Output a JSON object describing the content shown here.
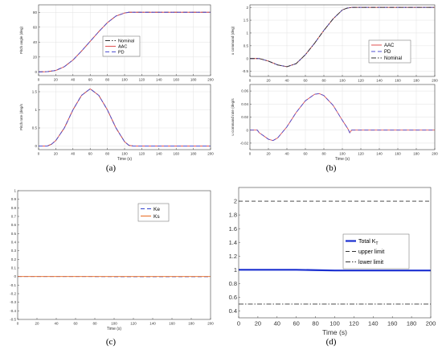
{
  "captions": {
    "a": "(a)",
    "b": "(b)",
    "c": "(c)",
    "d": "(d)"
  },
  "chart_data": [
    {
      "id": "a1",
      "type": "line",
      "xlabel": "",
      "ylabel": "Pitch angle (deg)",
      "xlim": [
        0,
        200
      ],
      "ylim": [
        -5,
        90
      ],
      "xticks": [
        0,
        20,
        40,
        60,
        80,
        100,
        120,
        140,
        160,
        180,
        200
      ],
      "yticks": [
        0,
        20,
        40,
        60,
        80
      ],
      "grid": true,
      "legend": "center-right",
      "series": [
        {
          "name": "Nominal",
          "color": "#333333",
          "dash": "dashdot",
          "x": [
            0,
            10,
            20,
            30,
            40,
            50,
            60,
            70,
            80,
            90,
            100,
            105,
            110,
            120,
            140,
            160,
            180,
            200
          ],
          "y": [
            0,
            0.3,
            2,
            7,
            16,
            28,
            41,
            54,
            66,
            75,
            79,
            80,
            80,
            80,
            80,
            80,
            80,
            80
          ]
        },
        {
          "name": "AAC",
          "color": "#e05050",
          "dash": "solid",
          "x": [
            0,
            10,
            20,
            30,
            40,
            50,
            60,
            70,
            80,
            90,
            100,
            105,
            110,
            120,
            140,
            160,
            180,
            200
          ],
          "y": [
            0,
            0.3,
            2,
            7,
            16,
            28,
            41,
            54,
            66,
            75,
            79,
            80,
            80,
            80,
            80,
            80,
            80,
            80
          ]
        },
        {
          "name": "PD",
          "color": "#5050d0",
          "dash": "dashed",
          "x": [
            0,
            10,
            20,
            30,
            40,
            50,
            60,
            70,
            80,
            90,
            100,
            105,
            110,
            120,
            140,
            160,
            180,
            200
          ],
          "y": [
            0,
            0.3,
            2,
            7,
            16,
            28,
            41,
            54,
            66,
            75,
            79,
            80,
            80,
            80,
            80,
            80,
            80,
            80
          ]
        }
      ]
    },
    {
      "id": "a2",
      "type": "line",
      "xlabel": "Time (s)",
      "ylabel": "Pitch rate (deg/s",
      "xlim": [
        0,
        200
      ],
      "ylim": [
        -0.1,
        1.7
      ],
      "xticks": [
        0,
        20,
        40,
        60,
        80,
        100,
        120,
        140,
        160,
        180,
        200
      ],
      "yticks": [
        0,
        0.5,
        1,
        1.5
      ],
      "grid": true,
      "legend": "none",
      "series": [
        {
          "name": "Nominal",
          "color": "#333333",
          "dash": "dashdot",
          "x": [
            0,
            10,
            15,
            20,
            30,
            40,
            50,
            60,
            70,
            80,
            90,
            100,
            105,
            110,
            120,
            140,
            160,
            180,
            200
          ],
          "y": [
            0,
            0,
            0.05,
            0.15,
            0.5,
            1.0,
            1.4,
            1.58,
            1.4,
            1.0,
            0.5,
            0.12,
            0.02,
            0,
            0,
            0,
            0,
            0,
            0
          ]
        },
        {
          "name": "AAC",
          "color": "#e05050",
          "dash": "solid",
          "x": [
            0,
            10,
            15,
            20,
            30,
            40,
            50,
            60,
            70,
            80,
            90,
            100,
            105,
            110,
            120,
            140,
            160,
            180,
            200
          ],
          "y": [
            0,
            0,
            0.05,
            0.15,
            0.5,
            1.0,
            1.4,
            1.58,
            1.4,
            1.0,
            0.5,
            0.12,
            0.02,
            0,
            0,
            0,
            0,
            0,
            0
          ]
        },
        {
          "name": "PD",
          "color": "#5050d0",
          "dash": "dashed",
          "x": [
            0,
            10,
            15,
            20,
            30,
            40,
            50,
            60,
            70,
            80,
            90,
            100,
            105,
            110,
            120,
            140,
            160,
            180,
            200
          ],
          "y": [
            0,
            0,
            0.05,
            0.15,
            0.5,
            1.0,
            1.4,
            1.58,
            1.4,
            1.0,
            0.5,
            0.12,
            0.02,
            0,
            0,
            0,
            0,
            0,
            0
          ]
        }
      ]
    },
    {
      "id": "b1",
      "type": "line",
      "xlabel": "",
      "ylabel": "u command (deg)",
      "xlim": [
        0,
        200
      ],
      "ylim": [
        -0.7,
        2.1
      ],
      "xticks": [
        0,
        20,
        40,
        60,
        80,
        100,
        120,
        140,
        160,
        180,
        200
      ],
      "yticks": [
        -0.5,
        0,
        0.5,
        1,
        1.5,
        2
      ],
      "grid": true,
      "legend": "center-right",
      "series": [
        {
          "name": "AAC",
          "color": "#e05050",
          "dash": "solid",
          "x": [
            0,
            10,
            20,
            30,
            40,
            50,
            60,
            70,
            80,
            90,
            100,
            105,
            110,
            120,
            140,
            160,
            180,
            200
          ],
          "y": [
            0,
            0,
            -0.1,
            -0.25,
            -0.32,
            -0.2,
            0.15,
            0.6,
            1.1,
            1.55,
            1.9,
            1.97,
            2,
            2,
            2,
            2,
            2,
            2
          ]
        },
        {
          "name": "PD",
          "color": "#5050d0",
          "dash": "dashed",
          "x": [
            0,
            10,
            20,
            30,
            40,
            50,
            60,
            70,
            80,
            90,
            100,
            105,
            110,
            120,
            140,
            160,
            180,
            200
          ],
          "y": [
            0,
            0,
            -0.1,
            -0.25,
            -0.32,
            -0.2,
            0.15,
            0.6,
            1.1,
            1.55,
            1.9,
            1.97,
            2,
            2,
            2,
            2,
            2,
            2
          ]
        },
        {
          "name": "Nominal",
          "color": "#333333",
          "dash": "dashdot",
          "x": [
            0,
            10,
            20,
            30,
            40,
            50,
            60,
            70,
            80,
            90,
            100,
            105,
            110,
            120,
            140,
            160,
            180,
            200
          ],
          "y": [
            0,
            0,
            -0.1,
            -0.25,
            -0.32,
            -0.2,
            0.15,
            0.6,
            1.1,
            1.55,
            1.9,
            1.97,
            2,
            2,
            2,
            2,
            2,
            2
          ]
        }
      ]
    },
    {
      "id": "b2",
      "type": "line",
      "xlabel": "Time (s)",
      "ylabel": "u command rate (deg/s",
      "xlim": [
        0,
        200
      ],
      "ylim": [
        -0.03,
        0.07
      ],
      "xticks": [
        0,
        20,
        40,
        60,
        80,
        100,
        120,
        140,
        160,
        180,
        200
      ],
      "yticks": [
        -0.02,
        0,
        0.02,
        0.04,
        0.06
      ],
      "grid": true,
      "legend": "none",
      "series": [
        {
          "name": "AAC",
          "color": "#e05050",
          "dash": "solid",
          "x": [
            0,
            8,
            10,
            14,
            20,
            25,
            30,
            40,
            50,
            60,
            70,
            75,
            80,
            90,
            100,
            106,
            108,
            110,
            120,
            140,
            160,
            180,
            200
          ],
          "y": [
            0,
            0,
            -0.004,
            -0.008,
            -0.014,
            -0.016,
            -0.012,
            0.005,
            0.027,
            0.045,
            0.055,
            0.056,
            0.053,
            0.038,
            0.015,
            0.002,
            -0.004,
            0,
            0,
            0,
            0,
            0,
            0
          ]
        },
        {
          "name": "PD",
          "color": "#5050d0",
          "dash": "dashed",
          "x": [
            0,
            8,
            10,
            14,
            20,
            25,
            30,
            40,
            50,
            60,
            70,
            75,
            80,
            90,
            100,
            106,
            108,
            110,
            120,
            140,
            160,
            180,
            200
          ],
          "y": [
            0,
            0,
            -0.004,
            -0.008,
            -0.014,
            -0.016,
            -0.012,
            0.005,
            0.027,
            0.045,
            0.055,
            0.056,
            0.053,
            0.038,
            0.015,
            0.002,
            -0.004,
            0,
            0,
            0,
            0,
            0,
            0
          ]
        }
      ]
    },
    {
      "id": "c",
      "type": "line",
      "xlabel": "Time (s)",
      "ylabel": "",
      "xlim": [
        0,
        200
      ],
      "ylim": [
        -0.5,
        1
      ],
      "xticks": [
        0,
        20,
        40,
        60,
        80,
        100,
        120,
        140,
        160,
        180,
        200
      ],
      "yticks": [
        -0.5,
        -0.4,
        -0.3,
        -0.2,
        -0.1,
        0,
        0.1,
        0.2,
        0.3,
        0.4,
        0.5,
        0.6,
        0.7,
        0.8,
        0.9,
        1
      ],
      "grid": false,
      "legend": "top-right",
      "series": [
        {
          "name": "Ke",
          "color": "#3344cc",
          "dash": "dashed",
          "x": [
            0,
            40,
            70,
            100,
            140,
            200
          ],
          "y": [
            0,
            0,
            0,
            -0.002,
            -0.002,
            -0.002
          ]
        },
        {
          "name": "Ks",
          "color": "#e8681e",
          "dash": "solid",
          "x": [
            0,
            40,
            70,
            100,
            140,
            200
          ],
          "y": [
            0,
            0,
            0,
            0,
            0,
            0
          ]
        }
      ]
    },
    {
      "id": "d",
      "type": "line",
      "xlabel": "Time (s)",
      "ylabel": "",
      "xlim": [
        0,
        200
      ],
      "ylim": [
        0.3,
        2.2
      ],
      "xticks": [
        0,
        20,
        40,
        60,
        80,
        100,
        120,
        140,
        160,
        180,
        200
      ],
      "yticks": [
        0.4,
        0.6,
        0.8,
        1,
        1.2,
        1.4,
        1.6,
        1.8,
        2
      ],
      "grid": false,
      "legend": "center-right",
      "series": [
        {
          "name": "Total K",
          "name_sub": "T",
          "color": "#1a2fd0",
          "dash": "solid",
          "width": 2.2,
          "x": [
            0,
            60,
            80,
            100,
            140,
            200
          ],
          "y": [
            1.0,
            1.0,
            0.995,
            0.99,
            0.99,
            0.99
          ]
        },
        {
          "name": "upper limit",
          "color": "#333333",
          "dash": "dashed",
          "x": [
            0,
            200
          ],
          "y": [
            2,
            2
          ]
        },
        {
          "name": "lower limit",
          "color": "#333333",
          "dash": "dashdot",
          "x": [
            0,
            200
          ],
          "y": [
            0.5,
            0.5
          ]
        }
      ]
    }
  ]
}
